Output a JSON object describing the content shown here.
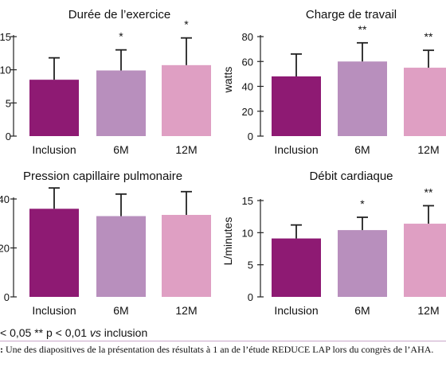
{
  "chart_data": [
    {
      "type": "bar",
      "title": "Durée de l’exercice",
      "categories": [
        "Inclusion",
        "6M",
        "12M"
      ],
      "values": [
        8.5,
        9.9,
        10.7
      ],
      "error": [
        3.3,
        3.1,
        4.1
      ],
      "significance": [
        "",
        "*",
        "*"
      ],
      "ylabel": "",
      "ylim": [
        0,
        15
      ],
      "yticks": [
        0,
        5,
        10,
        15
      ],
      "colors": [
        "#8e1a73",
        "#b88fbd",
        "#df9fc3"
      ]
    },
    {
      "type": "bar",
      "title": "Charge de travail",
      "categories": [
        "Inclusion",
        "6M",
        "12M"
      ],
      "values": [
        48,
        60,
        55
      ],
      "error": [
        18,
        15,
        14
      ],
      "significance": [
        "",
        "**",
        "**"
      ],
      "ylabel": "watts",
      "ylim": [
        0,
        80
      ],
      "yticks": [
        0,
        20,
        40,
        60,
        80
      ],
      "colors": [
        "#8e1a73",
        "#b88fbd",
        "#df9fc3"
      ]
    },
    {
      "type": "bar",
      "title": "Pression capillaire pulmonaire",
      "categories": [
        "Inclusion",
        "6M",
        "12M"
      ],
      "values": [
        36,
        33,
        33.5
      ],
      "error": [
        8.5,
        9,
        9.5
      ],
      "significance": [
        "",
        "",
        ""
      ],
      "ylabel": "",
      "ylim": [
        0,
        40
      ],
      "yticks": [
        0,
        20,
        40
      ],
      "colors": [
        "#8e1a73",
        "#b88fbd",
        "#df9fc3"
      ]
    },
    {
      "type": "bar",
      "title": "Débit cardiaque",
      "categories": [
        "Inclusion",
        "6M",
        "12M"
      ],
      "values": [
        9.1,
        10.4,
        11.4
      ],
      "error": [
        2.1,
        2.0,
        2.8
      ],
      "significance": [
        "",
        "*",
        "**"
      ],
      "ylabel": "L/minutes",
      "ylim": [
        0,
        15
      ],
      "yticks": [
        0,
        5,
        10,
        15
      ],
      "colors": [
        "#8e1a73",
        "#b88fbd",
        "#df9fc3"
      ]
    }
  ],
  "footnote": {
    "prefix": "< 0,05 ** p < 0,01 ",
    "vs": "vs",
    "suffix": " inclusion"
  },
  "caption": {
    "lead": ":",
    "text": " Une des diapositives de la présentation des résultats à 1 an de l’étude REDUCE LAP lors du congrès de l’AHA."
  }
}
